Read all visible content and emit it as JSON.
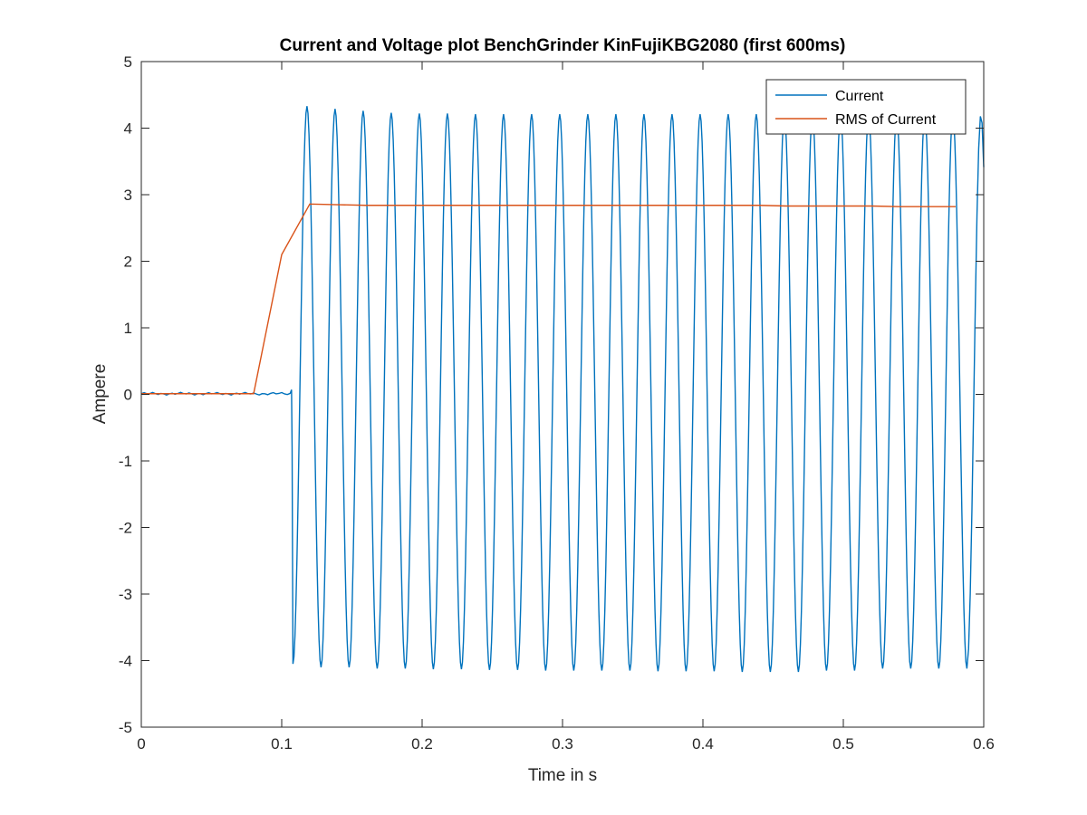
{
  "chart_data": {
    "type": "line",
    "title": "Current and Voltage plot BenchGrinder KinFujiKBG2080 (first 600ms)",
    "xlabel": "Time in s",
    "ylabel": "Ampere",
    "xlim": [
      0,
      0.6
    ],
    "ylim": [
      -5,
      5
    ],
    "xticks": [
      0,
      0.1,
      0.2,
      0.3,
      0.4,
      0.5,
      0.6
    ],
    "xtick_labels": [
      "0",
      "0.1",
      "0.2",
      "0.3",
      "0.4",
      "0.5",
      "0.6"
    ],
    "yticks": [
      -5,
      -4,
      -3,
      -2,
      -1,
      0,
      1,
      2,
      3,
      4,
      5
    ],
    "ytick_labels": [
      "-5",
      "-4",
      "-3",
      "-2",
      "-1",
      "0",
      "1",
      "2",
      "3",
      "4",
      "5"
    ],
    "grid": false,
    "legend_position": "top-right",
    "series": [
      {
        "name": "Current",
        "color": "#0072BD",
        "style": "sinusoid",
        "frequency_hz": 50,
        "onset_s": 0.108,
        "pre_onset_value": 0.01,
        "first_trough": -4.05,
        "peaks": [
          4.33,
          4.29,
          4.26,
          4.23,
          4.22,
          4.22,
          4.21,
          4.21,
          4.21,
          4.21,
          4.21,
          4.21,
          4.21,
          4.21,
          4.21,
          4.21,
          4.21,
          4.21,
          4.21,
          4.21,
          4.21,
          4.21,
          4.21,
          4.21
        ],
        "troughs": [
          -4.05,
          -4.1,
          -4.1,
          -4.12,
          -4.12,
          -4.13,
          -4.13,
          -4.14,
          -4.14,
          -4.15,
          -4.15,
          -4.15,
          -4.15,
          -4.16,
          -4.16,
          -4.16,
          -4.17,
          -4.17,
          -4.17,
          -4.15,
          -4.15,
          -4.12,
          -4.12,
          -4.12,
          -4.12
        ],
        "end_value": 2.65
      },
      {
        "name": "RMS of Current",
        "color": "#D95319",
        "x": [
          0,
          0.02,
          0.04,
          0.06,
          0.08,
          0.1,
          0.12,
          0.14,
          0.16,
          0.18,
          0.2,
          0.22,
          0.24,
          0.26,
          0.28,
          0.3,
          0.32,
          0.34,
          0.36,
          0.38,
          0.4,
          0.42,
          0.44,
          0.46,
          0.48,
          0.5,
          0.52,
          0.54,
          0.56,
          0.58
        ],
        "y": [
          0.01,
          0.01,
          0.01,
          0.01,
          0.01,
          2.1,
          2.86,
          2.85,
          2.84,
          2.84,
          2.84,
          2.84,
          2.84,
          2.84,
          2.84,
          2.84,
          2.84,
          2.84,
          2.84,
          2.84,
          2.84,
          2.84,
          2.84,
          2.83,
          2.83,
          2.83,
          2.83,
          2.82,
          2.82,
          2.82
        ]
      }
    ]
  }
}
